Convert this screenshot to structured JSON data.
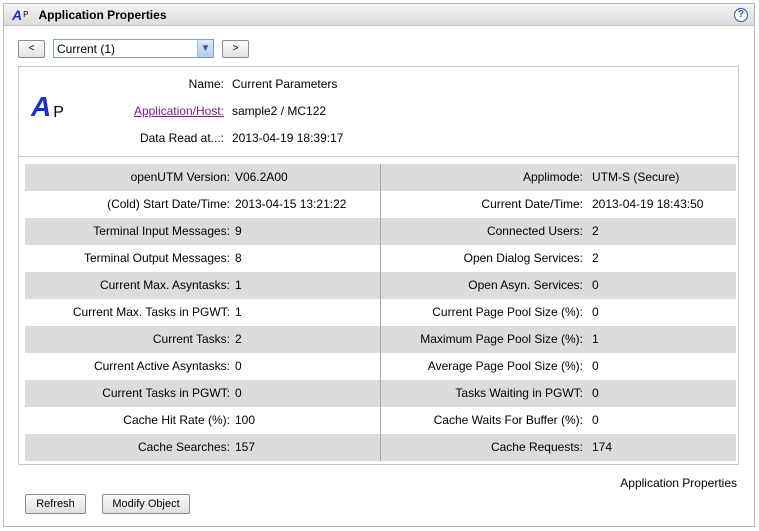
{
  "window": {
    "title": "Application Properties",
    "icon": "app-properties-icon",
    "help": "?"
  },
  "nav": {
    "prev_label": "<",
    "next_label": ">",
    "selected": "Current (1)"
  },
  "header": {
    "logo_letter": "A",
    "logo_sub": "P",
    "name_label": "Name:",
    "name_value": "Current Parameters",
    "apphost_label": "Application/Host:",
    "apphost_value": "sample2 / MC122",
    "read_label": "Data Read at...:",
    "read_value": "2013-04-19 18:39:17"
  },
  "rows": [
    {
      "lk": "openUTM Version:",
      "lv": "V06.2A00",
      "rk": "Applimode:",
      "rv": "UTM-S (Secure)"
    },
    {
      "lk": "(Cold) Start Date/Time:",
      "lv": "2013-04-15 13:21:22",
      "rk": "Current Date/Time:",
      "rv": "2013-04-19 18:43:50"
    },
    {
      "lk": "Terminal Input Messages:",
      "lv": "9",
      "rk": "Connected Users:",
      "rv": "2"
    },
    {
      "lk": "Terminal Output Messages:",
      "lv": "8",
      "rk": "Open Dialog Services:",
      "rv": "2"
    },
    {
      "lk": "Current Max. Asyntasks:",
      "lv": "1",
      "rk": "Open Asyn. Services:",
      "rv": "0"
    },
    {
      "lk": "Current Max. Tasks in PGWT:",
      "lv": "1",
      "rk": "Current Page Pool Size (%):",
      "rv": "0"
    },
    {
      "lk": "Current Tasks:",
      "lv": "2",
      "rk": "Maximum Page Pool Size (%):",
      "rv": "1"
    },
    {
      "lk": "Current Active Asyntasks:",
      "lv": "0",
      "rk": "Average Page Pool Size (%):",
      "rv": "0"
    },
    {
      "lk": "Current Tasks in PGWT:",
      "lv": "0",
      "rk": "Tasks Waiting in PGWT:",
      "rv": "0"
    },
    {
      "lk": "Cache Hit Rate (%):",
      "lv": "100",
      "rk": "Cache Waits For Buffer (%):",
      "rv": "0"
    },
    {
      "lk": "Cache Searches:",
      "lv": "157",
      "rk": "Cache Requests:",
      "rv": "174"
    }
  ],
  "footer": {
    "label": "Application Properties",
    "refresh": "Refresh",
    "modify": "Modify Object"
  },
  "colors": {
    "accent": "#1a2fd0",
    "link": "#7a1a8a",
    "row_shade": "#dcdcdc"
  }
}
